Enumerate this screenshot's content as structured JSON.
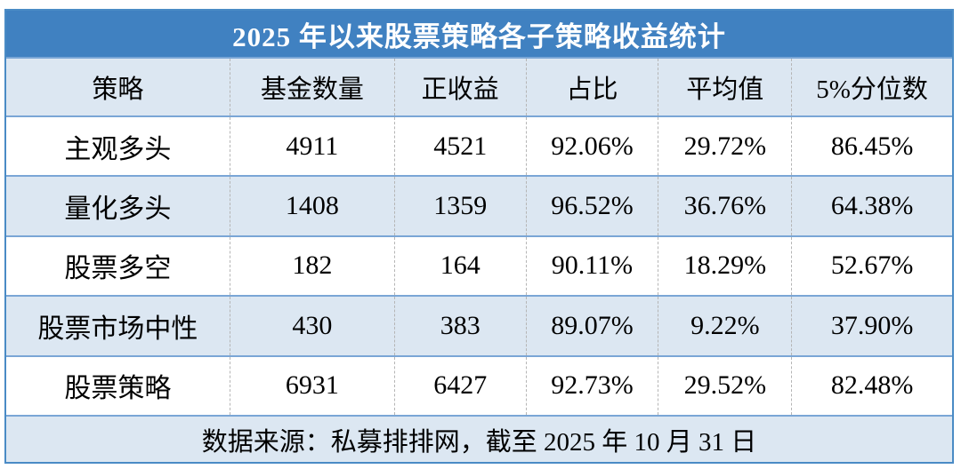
{
  "chart_data": {
    "type": "table",
    "title": "2025 年以来股票策略各子策略收益统计",
    "columns": [
      "策略",
      "基金数量",
      "正收益",
      "占比",
      "平均值",
      "5%分位数"
    ],
    "rows": [
      [
        "主观多头",
        "4911",
        "4521",
        "92.06%",
        "29.72%",
        "86.45%"
      ],
      [
        "量化多头",
        "1408",
        "1359",
        "96.52%",
        "36.76%",
        "64.38%"
      ],
      [
        "股票多空",
        "182",
        "164",
        "90.11%",
        "18.29%",
        "52.67%"
      ],
      [
        "股票市场中性",
        "430",
        "383",
        "89.07%",
        "9.22%",
        "37.90%"
      ],
      [
        "股票策略",
        "6931",
        "6427",
        "92.73%",
        "29.52%",
        "82.48%"
      ]
    ],
    "source_note": "数据来源：私募排排网，截至 2025 年 10 月 31 日",
    "layout_hints": {
      "banded_rows": true,
      "band_pattern": "white / light-blue alternating, header and footer light-blue"
    }
  },
  "colors": {
    "title_bg": "#4081c1",
    "title_text": "#ffffff",
    "band_bg": "#dce7f2",
    "row_border": "#7aa6d6",
    "outer_border": "#4a8bc5",
    "column_divider": "#b5b5b5",
    "body_text": "#000000"
  }
}
